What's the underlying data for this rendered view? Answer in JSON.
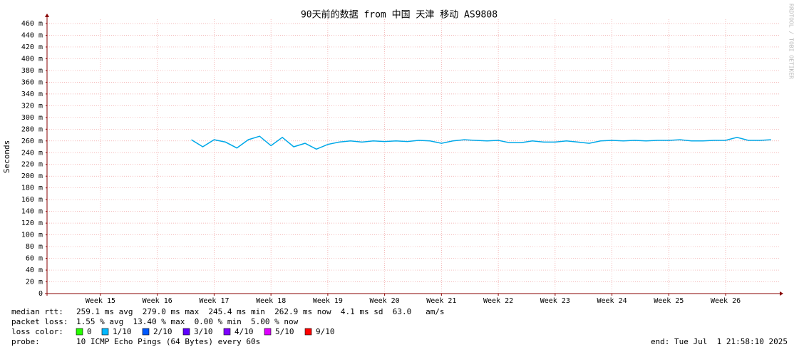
{
  "chart_data": {
    "type": "line",
    "title": "90天前的数据 from 中国 天津 移动 AS9808",
    "y_label": "Seconds",
    "watermark": "RRDTOOL / TOBI OETIKER",
    "color": "#00a8e8",
    "grid": true,
    "xlim": [
      14.06,
      26.94
    ],
    "xticks": [
      {
        "value": 15,
        "label": "Week 15"
      },
      {
        "value": 16,
        "label": "Week 16"
      },
      {
        "value": 17,
        "label": "Week 17"
      },
      {
        "value": 18,
        "label": "Week 18"
      },
      {
        "value": 19,
        "label": "Week 19"
      },
      {
        "value": 20,
        "label": "Week 20"
      },
      {
        "value": 21,
        "label": "Week 21"
      },
      {
        "value": 22,
        "label": "Week 22"
      },
      {
        "value": 23,
        "label": "Week 23"
      },
      {
        "value": 24,
        "label": "Week 24"
      },
      {
        "value": 25,
        "label": "Week 25"
      },
      {
        "value": 26,
        "label": "Week 26"
      }
    ],
    "ylim": [
      0,
      0.46
    ],
    "yticks": [
      0,
      {
        "value": 0.02,
        "label": "20 m"
      },
      {
        "value": 0.04,
        "label": "40 m"
      },
      {
        "value": 0.06,
        "label": "60 m"
      },
      {
        "value": 0.08,
        "label": "80 m"
      },
      {
        "value": 0.1,
        "label": "100 m"
      },
      {
        "value": 0.12,
        "label": "120 m"
      },
      {
        "value": 0.14,
        "label": "140 m"
      },
      {
        "value": 0.16,
        "label": "160 m"
      },
      {
        "value": 0.18,
        "label": "180 m"
      },
      {
        "value": 0.2,
        "label": "200 m"
      },
      {
        "value": 0.22,
        "label": "220 m"
      },
      {
        "value": 0.24,
        "label": "240 m"
      },
      {
        "value": 0.26,
        "label": "260 m"
      },
      {
        "value": 0.28,
        "label": "280 m"
      },
      {
        "value": 0.3,
        "label": "300 m"
      },
      {
        "value": 0.32,
        "label": "320 m"
      },
      {
        "value": 0.34,
        "label": "340 m"
      },
      {
        "value": 0.36,
        "label": "360 m"
      },
      {
        "value": 0.38,
        "label": "380 m"
      },
      {
        "value": 0.4,
        "label": "400 m"
      },
      {
        "value": 0.42,
        "label": "420 m"
      },
      {
        "value": 0.44,
        "label": "440 m"
      },
      {
        "value": 0.46,
        "label": "460 m"
      }
    ],
    "x": [
      16.6,
      16.8,
      17.0,
      17.2,
      17.4,
      17.6,
      17.8,
      18.0,
      18.2,
      18.4,
      18.6,
      18.8,
      19.0,
      19.2,
      19.4,
      19.6,
      19.8,
      20.0,
      20.2,
      20.4,
      20.6,
      20.8,
      21.0,
      21.2,
      21.4,
      21.6,
      21.8,
      22.0,
      22.2,
      22.4,
      22.6,
      22.8,
      23.0,
      23.2,
      23.4,
      23.6,
      23.8,
      24.0,
      24.2,
      24.4,
      24.6,
      24.8,
      25.0,
      25.2,
      25.4,
      25.6,
      25.8,
      26.0,
      26.2,
      26.4,
      26.6,
      26.8
    ],
    "values": [
      0.262,
      0.25,
      0.262,
      0.258,
      0.248,
      0.262,
      0.268,
      0.252,
      0.266,
      0.25,
      0.256,
      0.246,
      0.254,
      0.258,
      0.26,
      0.258,
      0.26,
      0.259,
      0.26,
      0.259,
      0.261,
      0.26,
      0.256,
      0.26,
      0.262,
      0.261,
      0.26,
      0.261,
      0.257,
      0.257,
      0.26,
      0.258,
      0.258,
      0.26,
      0.258,
      0.256,
      0.26,
      0.261,
      0.26,
      0.261,
      0.26,
      0.261,
      0.261,
      0.262,
      0.26,
      0.26,
      0.261,
      0.261,
      0.266,
      0.261,
      0.261,
      0.262
    ],
    "stats": [
      {
        "label": "median rtt:",
        "text": "259.1 ms avg  279.0 ms max  245.4 ms min  262.9 ms now  4.1 ms sd  63.0   am/s"
      },
      {
        "label": "packet loss:",
        "text": "1.55 % avg  13.40 % max  0.00 % min  5.00 % now"
      }
    ],
    "loss_label": "loss color:",
    "loss_colors": [
      {
        "label": "0",
        "color": "#26ff00"
      },
      {
        "label": "1/10",
        "color": "#00b8ff"
      },
      {
        "label": "2/10",
        "color": "#0059ff"
      },
      {
        "label": "3/10",
        "color": "#5e00ff"
      },
      {
        "label": "4/10",
        "color": "#7e00ff"
      },
      {
        "label": "5/10",
        "color": "#dd00ff"
      },
      {
        "label": "9/10",
        "color": "#ff0000"
      }
    ],
    "probe_label": "probe:",
    "probe": "10 ICMP Echo Pings (64 Bytes) every 60s",
    "end": "end: Tue Jul  1 21:58:10 2025"
  }
}
